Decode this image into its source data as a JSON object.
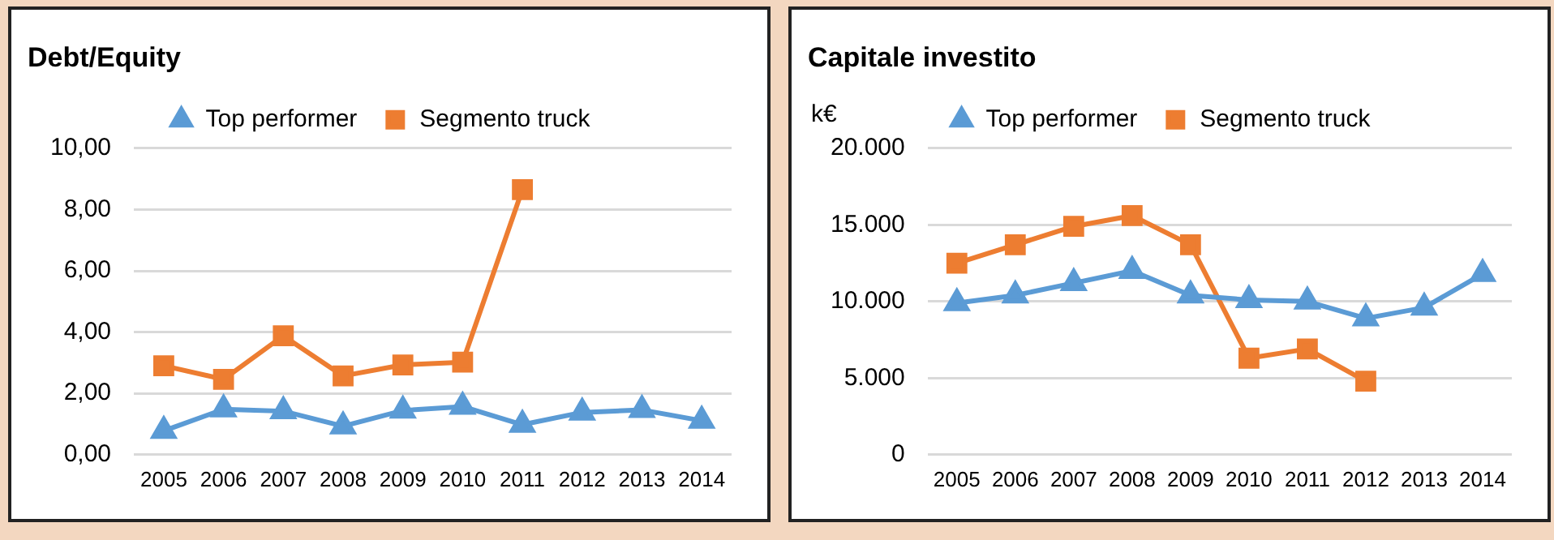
{
  "chart_data": [
    {
      "type": "line",
      "title": "Debt/Equity",
      "categories": [
        "2005",
        "2006",
        "2007",
        "2008",
        "2009",
        "2010",
        "2011",
        "2012",
        "2013",
        "2014"
      ],
      "series": [
        {
          "name": "Top performer",
          "color": "#5b9bd5",
          "marker": "triangle",
          "values": [
            0.78,
            1.48,
            1.42,
            0.93,
            1.44,
            1.57,
            0.98,
            1.38,
            1.46,
            1.11
          ]
        },
        {
          "name": "Segmento truck",
          "color": "#ed7d31",
          "marker": "square",
          "values": [
            2.9,
            2.46,
            3.88,
            2.57,
            2.93,
            3.02,
            8.65,
            null,
            null,
            null
          ]
        }
      ],
      "ylim": [
        0,
        10
      ],
      "yticks": [
        {
          "value": 0,
          "label": "0,00"
        },
        {
          "value": 2,
          "label": "2,00"
        },
        {
          "value": 4,
          "label": "4,00"
        },
        {
          "value": 6,
          "label": "6,00"
        },
        {
          "value": 8,
          "label": "8,00"
        },
        {
          "value": 10,
          "label": "10,00"
        }
      ],
      "grid": "y",
      "legend": "top",
      "line_style": "solid"
    },
    {
      "type": "line",
      "title": "Capitale investito",
      "ylabel": "k€",
      "categories": [
        "2005",
        "2006",
        "2007",
        "2008",
        "2009",
        "2010",
        "2011",
        "2012",
        "2013",
        "2014"
      ],
      "series": [
        {
          "name": "Top performer",
          "color": "#5b9bd5",
          "marker": "triangle",
          "values": [
            9900,
            10400,
            11200,
            12000,
            10400,
            10100,
            10000,
            8900,
            9600,
            11800
          ]
        },
        {
          "name": "Segmento truck",
          "color": "#ed7d31",
          "marker": "square",
          "values": [
            12500,
            13700,
            14900,
            15600,
            13700,
            6300,
            6900,
            4800,
            null,
            null
          ]
        }
      ],
      "ylim": [
        0,
        20000
      ],
      "yticks": [
        0,
        {
          "value": 5000,
          "label": "5.000"
        },
        {
          "value": 10000,
          "label": "10.000"
        },
        {
          "value": 15000,
          "label": "15.000"
        },
        {
          "value": 20000,
          "label": "20.000"
        }
      ],
      "grid": "y",
      "legend": "top",
      "line_style": "solid"
    }
  ]
}
